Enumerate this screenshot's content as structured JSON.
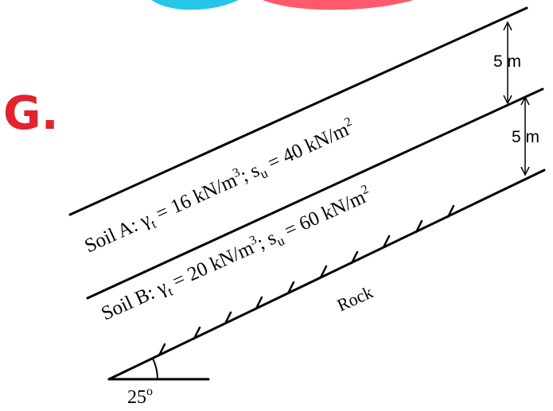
{
  "watermark": {
    "text": "G.",
    "colors": {
      "red": "#e2222d",
      "cyan": "#26c6e8",
      "pink": "#ff5a6b"
    }
  },
  "dimensions": {
    "upper": "5 m",
    "lower": "5 m"
  },
  "soil_a": {
    "prefix": "Soil A: ",
    "gamma": "γ",
    "gamma_sub": "t",
    "gamma_value": " = 16 kN/m",
    "gamma_exp": "3",
    "separator": "; s",
    "su_sub": "u",
    "su_value": " = 40 kN/m",
    "su_exp": "2"
  },
  "soil_b": {
    "prefix": "Soil B: ",
    "gamma": "γ",
    "gamma_sub": "t",
    "gamma_value": " = 20 kN/m",
    "gamma_exp": "3",
    "separator": "; s",
    "su_sub": "u",
    "su_value": " = 60 kN/m",
    "su_exp": "2"
  },
  "rock_label": "Rock",
  "angle": {
    "value": "25",
    "degree_mark": "o"
  }
}
